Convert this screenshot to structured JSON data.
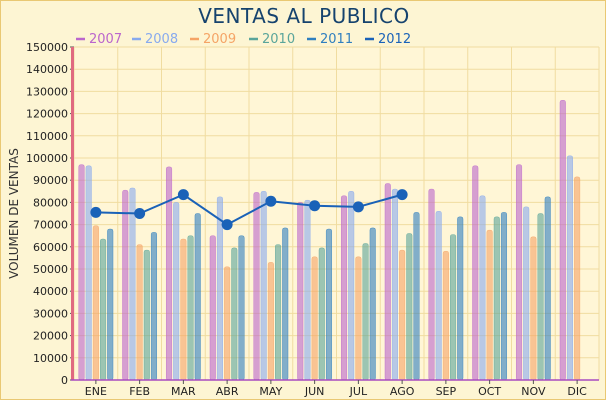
{
  "chart_data": {
    "type": "bar",
    "title": "VENTAS AL PUBLICO",
    "ylabel": "VOLUMEN DE VENTAS",
    "xlabel": "",
    "ylim": [
      0,
      150000
    ],
    "y_ticks": [
      "0",
      "10000",
      "20000",
      "30000",
      "40000",
      "50000",
      "60000",
      "70000",
      "80000",
      "90000",
      "100000",
      "110000",
      "120000",
      "130000",
      "140000",
      "150000"
    ],
    "categories": [
      "ENE",
      "FEB",
      "MAR",
      "ABR",
      "MAY",
      "JUN",
      "JUL",
      "AGO",
      "SEP",
      "OCT",
      "NOV",
      "DIC"
    ],
    "grid": true,
    "legend_position": "top",
    "series": [
      {
        "name": "2007",
        "type": "bar",
        "color": "#bb66cc",
        "values": [
          97000,
          85500,
          96000,
          65000,
          84500,
          80000,
          83000,
          88500,
          86000,
          96500,
          97000,
          126000
        ]
      },
      {
        "name": "2008",
        "type": "bar",
        "color": "#88aaee",
        "values": [
          96500,
          86500,
          80000,
          82500,
          85000,
          81000,
          85000,
          86000,
          76000,
          83000,
          78000,
          101000
        ]
      },
      {
        "name": "2009",
        "type": "bar",
        "color": "#f5a466",
        "values": [
          69500,
          61000,
          63500,
          51000,
          53000,
          55500,
          55500,
          58500,
          58000,
          67500,
          64500,
          91500
        ]
      },
      {
        "name": "2010",
        "type": "bar",
        "color": "#5aa59a",
        "values": [
          63500,
          58500,
          65000,
          59500,
          61000,
          59500,
          61500,
          66000,
          65500,
          73500,
          75000,
          null
        ]
      },
      {
        "name": "2011",
        "type": "bar",
        "color": "#2f7fbf",
        "values": [
          68000,
          66500,
          75000,
          65000,
          68500,
          68000,
          68500,
          75500,
          73500,
          75500,
          82500,
          null
        ]
      },
      {
        "name": "2012",
        "type": "line",
        "color": "#1a62b8",
        "values": [
          75500,
          75000,
          83500,
          70000,
          80500,
          78500,
          78000,
          83500,
          null,
          null,
          null,
          null
        ]
      }
    ]
  }
}
